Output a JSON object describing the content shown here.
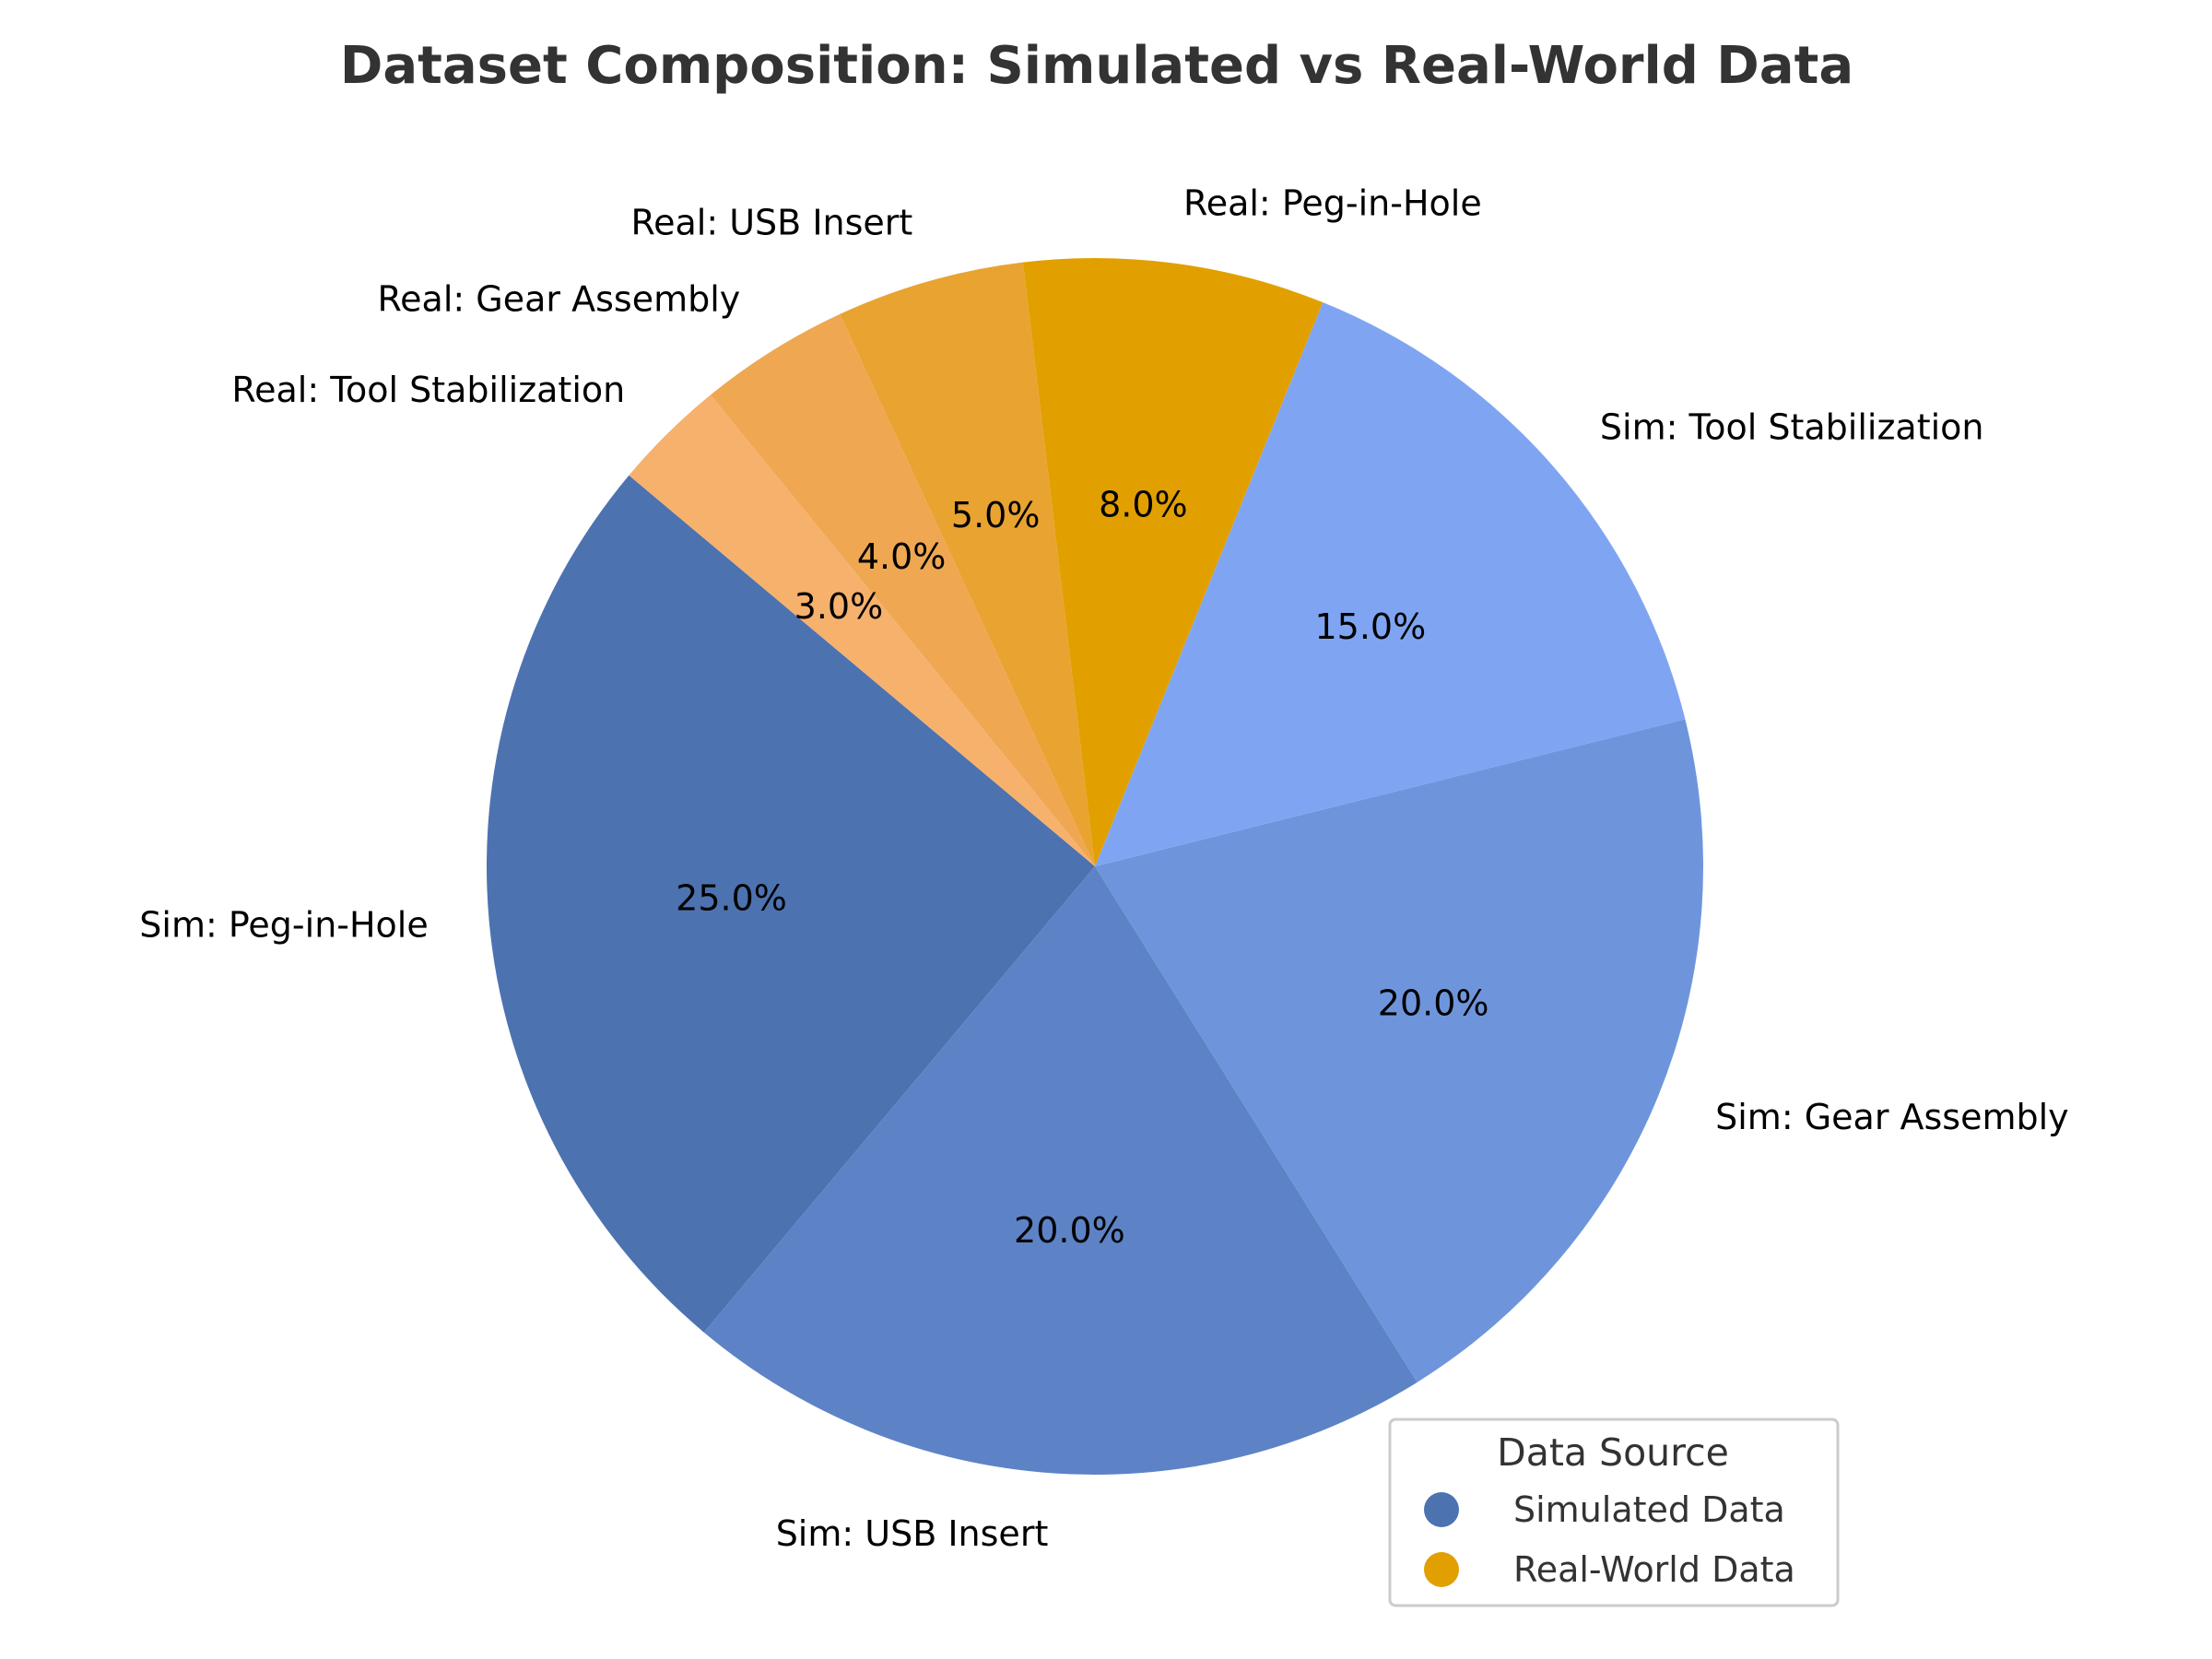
{
  "chart_data": {
    "type": "pie",
    "title": "Dataset Composition: Simulated vs Real-World Data",
    "slices": [
      {
        "label": "Sim: Peg-in-Hole",
        "value": 25.0,
        "pct_label": "25.0%",
        "color": "#4c72b0"
      },
      {
        "label": "Sim: USB Insert",
        "value": 20.0,
        "pct_label": "20.0%",
        "color": "#5d83c6"
      },
      {
        "label": "Sim: Gear Assembly",
        "value": 20.0,
        "pct_label": "20.0%",
        "color": "#6e95dc"
      },
      {
        "label": "Sim: Tool Stabilization",
        "value": 15.0,
        "pct_label": "15.0%",
        "color": "#7fa5f2"
      },
      {
        "label": "Real: Peg-in-Hole",
        "value": 8.0,
        "pct_label": "8.0%",
        "color": "#e1a000"
      },
      {
        "label": "Real: USB Insert",
        "value": 5.0,
        "pct_label": "5.0%",
        "color": "#e8a331"
      },
      {
        "label": "Real: Gear Assembly",
        "value": 4.0,
        "pct_label": "4.0%",
        "color": "#efa752"
      },
      {
        "label": "Real: Tool Stabilization",
        "value": 3.0,
        "pct_label": "3.0%",
        "color": "#f6b16d"
      }
    ],
    "start_angle_deg": 140,
    "direction": "counterclockwise",
    "legend": {
      "title": "Data Source",
      "position": "bottom-right",
      "entries": [
        {
          "label": "Simulated Data",
          "color": "#4c72b0"
        },
        {
          "label": "Real-World Data",
          "color": "#e1a000"
        }
      ]
    }
  }
}
